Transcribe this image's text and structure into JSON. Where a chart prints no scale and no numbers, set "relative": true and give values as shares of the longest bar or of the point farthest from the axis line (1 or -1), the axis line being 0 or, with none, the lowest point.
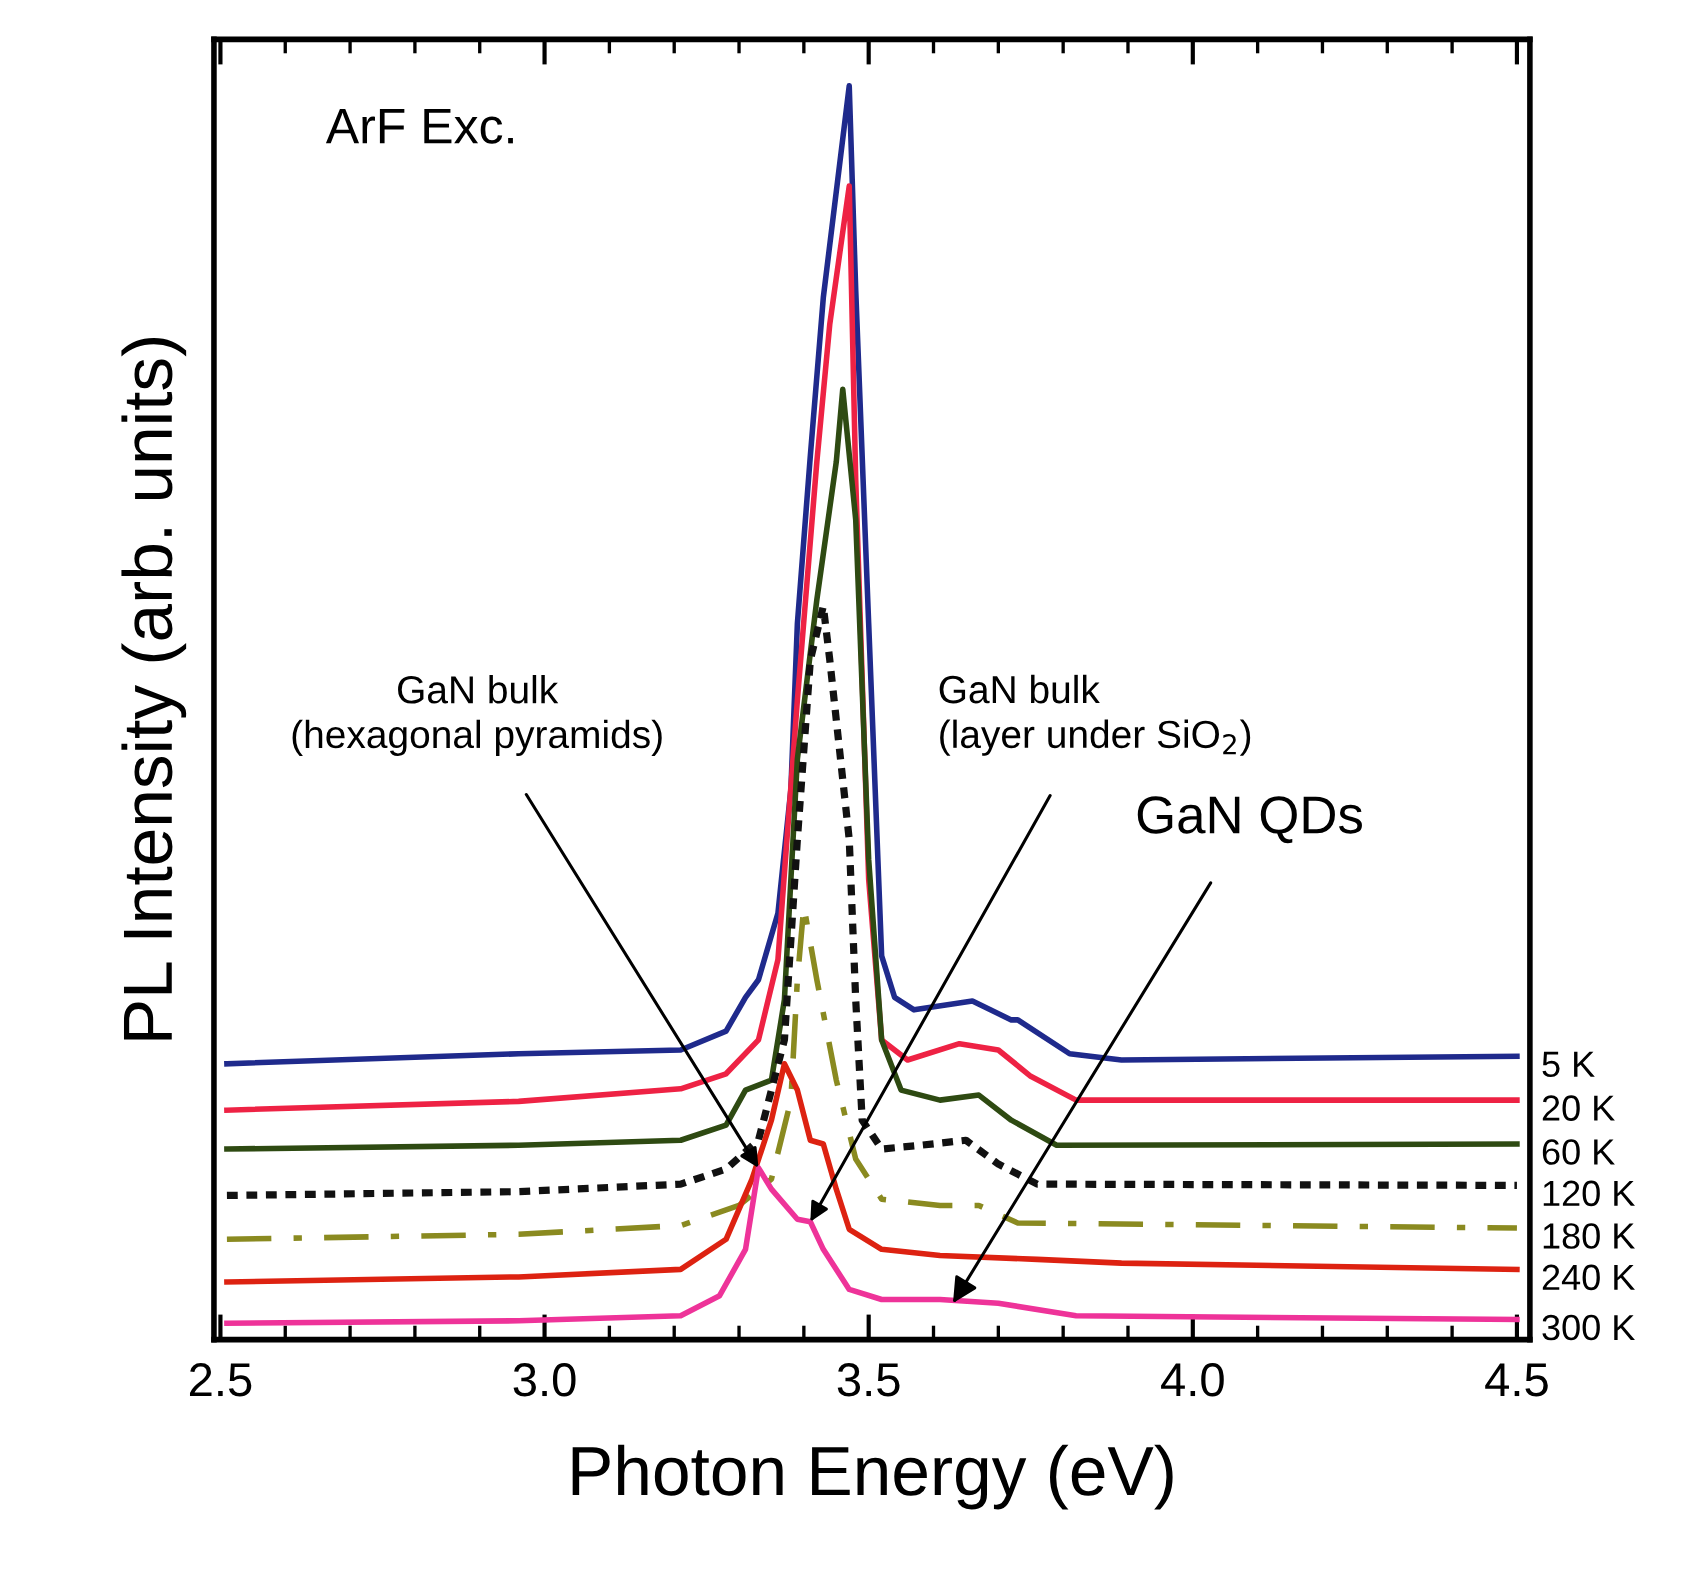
{
  "chart_data": {
    "type": "line",
    "xlabel": "Photon Energy (eV)",
    "ylabel": "PL Intensity (arb. units)",
    "relative": true,
    "legend": false,
    "grid": false,
    "xlim": [
      2.49,
      4.52
    ],
    "xticks": [
      {
        "value": 2.5,
        "label": "2.5"
      },
      {
        "value": 3.0,
        "label": "3.0"
      },
      {
        "value": 3.5,
        "label": "3.5"
      },
      {
        "value": 4.0,
        "label": "4.0"
      },
      {
        "value": 4.5,
        "label": "4.5"
      }
    ],
    "series": [
      {
        "name": "5 K",
        "color": "#1f2a8c",
        "line_style": "solid",
        "x": [
          2.51,
          2.96,
          3.21,
          3.28,
          3.31,
          3.33,
          3.36,
          3.38,
          3.39,
          3.41,
          3.43,
          3.47,
          3.48,
          3.5,
          3.51,
          3.52,
          3.54,
          3.57,
          3.66,
          3.72,
          3.73,
          3.81,
          3.89,
          4.5
        ],
        "values": [
          0.22,
          0.228,
          0.231,
          0.246,
          0.273,
          0.287,
          0.34,
          0.439,
          0.571,
          0.705,
          0.831,
          1,
          0.837,
          0.571,
          0.439,
          0.306,
          0.273,
          0.263,
          0.27,
          0.255,
          0.255,
          0.228,
          0.223,
          0.226
        ]
      },
      {
        "name": "20 K",
        "color": "#ee2244",
        "line_style": "solid",
        "x": [
          2.51,
          2.96,
          3.21,
          3.28,
          3.33,
          3.36,
          3.39,
          3.42,
          3.44,
          3.47,
          3.48,
          3.5,
          3.52,
          3.56,
          3.64,
          3.7,
          3.75,
          3.82,
          4.5
        ],
        "values": [
          0.183,
          0.19,
          0.2,
          0.212,
          0.239,
          0.303,
          0.51,
          0.7,
          0.81,
          0.92,
          0.686,
          0.367,
          0.239,
          0.223,
          0.236,
          0.231,
          0.21,
          0.191,
          0.191
        ]
      },
      {
        "name": "60 K",
        "color": "#2e4a12",
        "line_style": "solid",
        "x": [
          2.51,
          2.96,
          3.21,
          3.28,
          3.31,
          3.35,
          3.37,
          3.39,
          3.42,
          3.45,
          3.46,
          3.48,
          3.5,
          3.52,
          3.55,
          3.61,
          3.67,
          3.72,
          3.79,
          4.5
        ],
        "values": [
          0.152,
          0.155,
          0.159,
          0.171,
          0.199,
          0.207,
          0.271,
          0.463,
          0.59,
          0.7,
          0.758,
          0.654,
          0.383,
          0.239,
          0.199,
          0.191,
          0.195,
          0.175,
          0.155,
          0.156
        ]
      },
      {
        "name": "120 K",
        "color": "#111111",
        "line_style": "dotted",
        "x": [
          2.51,
          2.96,
          3.21,
          3.28,
          3.33,
          3.37,
          3.39,
          3.41,
          3.43,
          3.44,
          3.47,
          3.48,
          3.49,
          3.52,
          3.58,
          3.65,
          3.7,
          3.76,
          4.5
        ],
        "values": [
          0.115,
          0.118,
          0.124,
          0.136,
          0.159,
          0.239,
          0.399,
          0.542,
          0.585,
          0.542,
          0.399,
          0.271,
          0.175,
          0.152,
          0.155,
          0.159,
          0.14,
          0.124,
          0.123
        ]
      },
      {
        "name": "180 K",
        "color": "#8a8a20",
        "line_style": "dashed",
        "x": [
          2.51,
          2.96,
          3.21,
          3.3,
          3.35,
          3.38,
          3.39,
          3.4,
          3.42,
          3.45,
          3.48,
          3.52,
          3.61,
          3.67,
          3.73,
          4.5
        ],
        "values": [
          0.08,
          0.084,
          0.091,
          0.107,
          0.128,
          0.191,
          0.287,
          0.346,
          0.287,
          0.207,
          0.144,
          0.112,
          0.107,
          0.107,
          0.093,
          0.089
        ]
      },
      {
        "name": "240 K",
        "color": "#dd2211",
        "line_style": "solid",
        "x": [
          2.51,
          2.96,
          3.21,
          3.28,
          3.32,
          3.35,
          3.37,
          3.39,
          3.41,
          3.43,
          3.45,
          3.47,
          3.52,
          3.61,
          3.76,
          3.89,
          4.5
        ],
        "values": [
          0.046,
          0.05,
          0.056,
          0.08,
          0.128,
          0.175,
          0.22,
          0.199,
          0.159,
          0.156,
          0.12,
          0.088,
          0.072,
          0.067,
          0.064,
          0.061,
          0.056
        ]
      },
      {
        "name": "300 K",
        "color": "#ee3399",
        "line_style": "solid",
        "x": [
          2.51,
          2.96,
          3.21,
          3.27,
          3.31,
          3.33,
          3.35,
          3.39,
          3.41,
          3.43,
          3.47,
          3.52,
          3.61,
          3.7,
          3.82,
          4.5
        ],
        "values": [
          0.013,
          0.015,
          0.019,
          0.035,
          0.072,
          0.137,
          0.12,
          0.096,
          0.094,
          0.072,
          0.04,
          0.032,
          0.032,
          0.029,
          0.019,
          0.016
        ]
      }
    ],
    "annotations": [
      "ArF Exc.",
      {
        "text": "GaN bulk\n(hexagonal pyramids)",
        "x": 3.33,
        "y": 0.137
      },
      {
        "text": "GaN bulk\n(layer under SiO$_{2}$)",
        "x": 3.41,
        "y": 0.094
      },
      {
        "text": "GaN QDs",
        "x": 3.63,
        "y": 0.029
      }
    ]
  }
}
